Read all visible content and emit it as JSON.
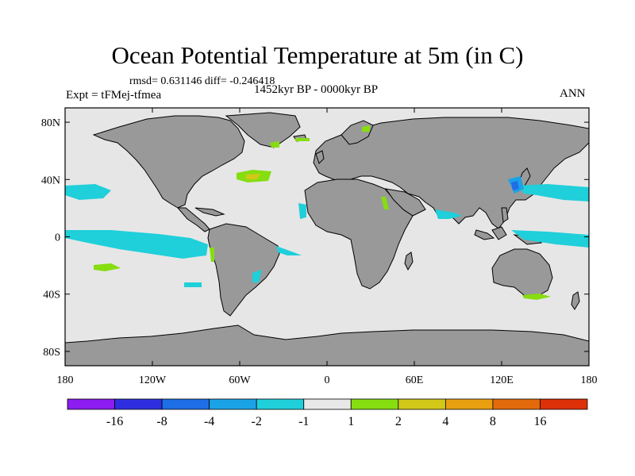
{
  "title": "Ocean Potential Temperature at 5m (in C)",
  "stats": "rmsd= 0.631146 diff= -0.246418",
  "experiment": "Expt = tFMej-tfmea",
  "period": "1452kyr BP - 0000kyr BP",
  "season": "ANN",
  "map": {
    "lat_ticks": [
      {
        "label": "80N",
        "lat": 80
      },
      {
        "label": "40N",
        "lat": 40
      },
      {
        "label": "0",
        "lat": 0
      },
      {
        "label": "40S",
        "lat": -40
      },
      {
        "label": "80S",
        "lat": -80
      }
    ],
    "lon_ticks": [
      {
        "label": "180",
        "lon": -180
      },
      {
        "label": "120W",
        "lon": -120
      },
      {
        "label": "60W",
        "lon": -60
      },
      {
        "label": "0",
        "lon": 0
      },
      {
        "label": "60E",
        "lon": 60
      },
      {
        "label": "120E",
        "lon": 120
      },
      {
        "label": "180",
        "lon": 180
      }
    ],
    "land_color": "#999999",
    "ocean_color": "#e6e6e6"
  },
  "colorbar": {
    "colors": [
      "#8c1cf0",
      "#2e2ee0",
      "#1e6ee6",
      "#1aa2e6",
      "#1fcfda",
      "#e8e8e8",
      "#86dd10",
      "#d2c818",
      "#e8a010",
      "#e26a0a",
      "#dc3008"
    ],
    "labels": [
      "-16",
      "-8",
      "-4",
      "-2",
      "-1",
      "1",
      "2",
      "4",
      "8",
      "16"
    ]
  }
}
